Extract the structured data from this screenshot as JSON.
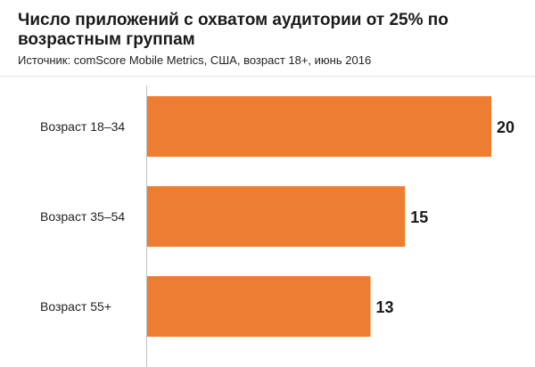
{
  "title": "Число приложений с охватом аудитории от 25% по возрастным группам",
  "subtitle": "Источник: comScore Mobile Metrics, США, возраст 18+, июнь 2016",
  "chart_data": {
    "type": "bar",
    "orientation": "horizontal",
    "categories": [
      "Возраст 18–34",
      "Возраст 35–54",
      "Возраст 55+"
    ],
    "values": [
      20,
      15,
      13
    ],
    "xlim": [
      0,
      20
    ],
    "grid": false,
    "bar_color": "#ED7D31",
    "axis_color": "#BFBFBF"
  }
}
